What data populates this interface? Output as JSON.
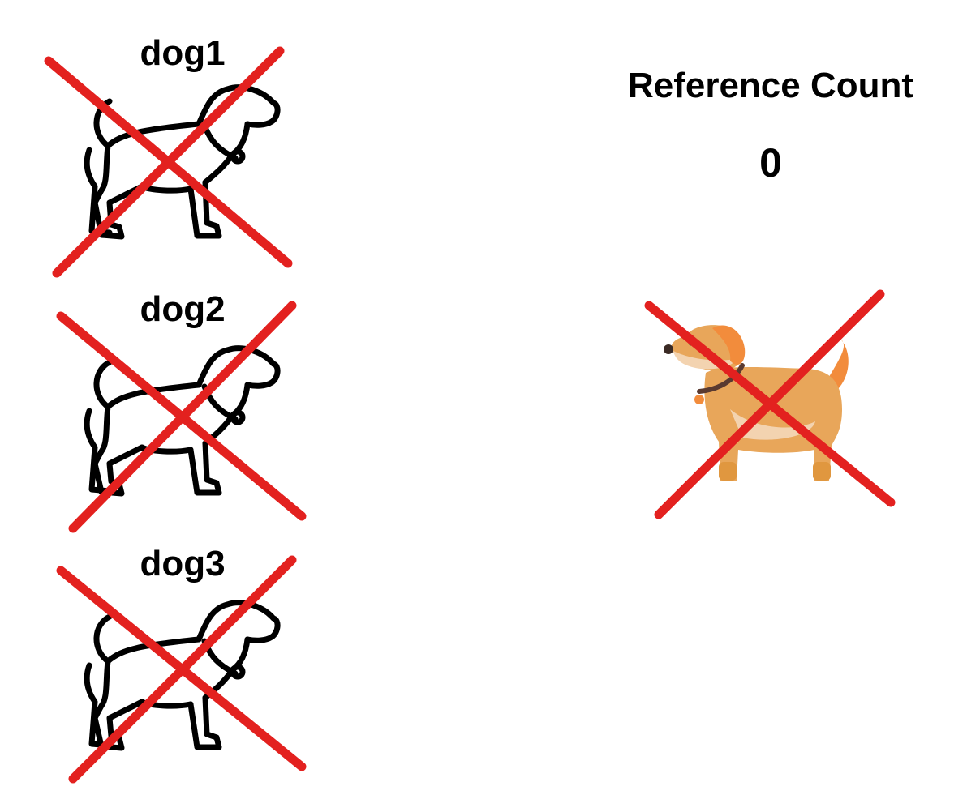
{
  "references": [
    {
      "name": "dog1",
      "crossed_out": true
    },
    {
      "name": "dog2",
      "crossed_out": true
    },
    {
      "name": "dog3",
      "crossed_out": true
    }
  ],
  "reference_count": {
    "title": "Reference Count",
    "value": "0"
  },
  "shared_object": {
    "icon": "orange-dog-icon",
    "crossed_out": true
  },
  "colors": {
    "cross": "#e3211f",
    "outline": "#000000",
    "dog_body": "#e8a65a",
    "dog_ear": "#f28c3c",
    "dog_belly": "#f3d3b0",
    "collar": "#5a3a30",
    "tag": "#f28c3c"
  }
}
